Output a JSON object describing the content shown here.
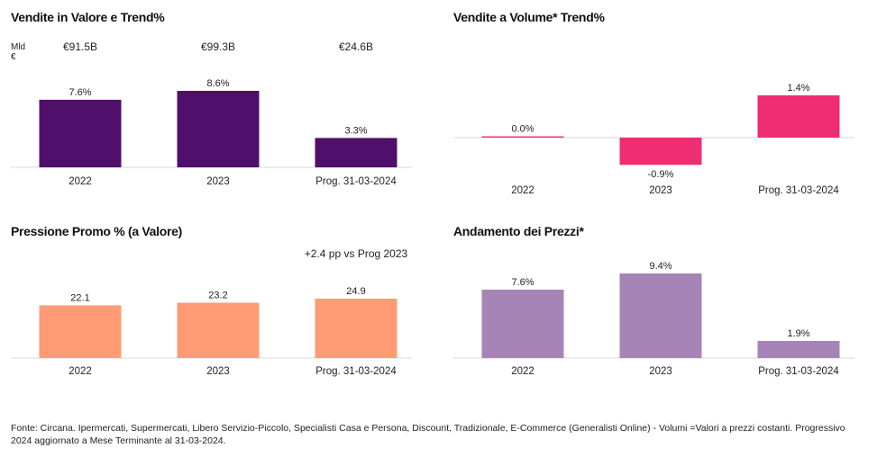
{
  "panels": [
    {
      "title": "Vendite in Valore e Trend%",
      "unit_label": "Mld €",
      "totals": [
        "€91.5B",
        "€99.3B",
        "€24.6B"
      ],
      "note": "",
      "chart_data": {
        "type": "bar",
        "categories": [
          "2022",
          "2023",
          "Prog. 31-03-2024"
        ],
        "values": [
          7.6,
          8.6,
          3.3
        ],
        "value_labels": [
          "7.6%",
          "8.6%",
          "3.3%"
        ],
        "colors": [
          "#4f0f6b",
          "#4f0f6b",
          "#4f0f6b"
        ],
        "ylim": [
          0,
          8.6
        ],
        "grid": false
      }
    },
    {
      "title": "Vendite a Volume* Trend%",
      "unit_label": "",
      "totals": [],
      "note": "",
      "chart_data": {
        "type": "bar",
        "categories": [
          "2022",
          "2023",
          "Prog. 31-03-2024"
        ],
        "values": [
          0.0,
          -0.9,
          1.4
        ],
        "value_labels": [
          "0.0%",
          "-0.9%",
          "1.4%"
        ],
        "colors": [
          "#f03478",
          "#ef2d73",
          "#ef2d73"
        ],
        "ylim": [
          -0.9,
          1.4
        ],
        "grid": false
      }
    },
    {
      "title": "Pressione Promo % (a Valore)",
      "unit_label": "",
      "totals": [],
      "note": "+2.4 pp vs Prog 2023",
      "chart_data": {
        "type": "bar",
        "categories": [
          "2022",
          "2023",
          "Prog. 31-03-2024"
        ],
        "values": [
          22.1,
          23.2,
          24.9
        ],
        "value_labels": [
          "22.1",
          "23.2",
          "24.9"
        ],
        "colors": [
          "#ff9b74",
          "#ff9b74",
          "#ff9b74"
        ],
        "ylim": [
          0,
          24.9
        ],
        "grid": false
      }
    },
    {
      "title": "Andamento dei Prezzi*",
      "unit_label": "",
      "totals": [],
      "note": "",
      "chart_data": {
        "type": "bar",
        "categories": [
          "2022",
          "2023",
          "Prog. 31-03-2024"
        ],
        "values": [
          7.6,
          9.4,
          1.9
        ],
        "value_labels": [
          "7.6%",
          "9.4%",
          "1.9%"
        ],
        "colors": [
          "#a684b6",
          "#a684b6",
          "#a684b6"
        ],
        "ylim": [
          0,
          9.4
        ],
        "grid": false
      }
    }
  ],
  "footnote": "Fonte: Circana. Ipermercati, Supermercati, Libero Servizio-Piccolo, Specialisti Casa e Persona, Discount, Tradizionale, E-Commerce (Generalisti Online) - Volumi =Valori a prezzi costanti. Progressivo 2024 aggiornato a Mese Terminante al 31-03-2024."
}
